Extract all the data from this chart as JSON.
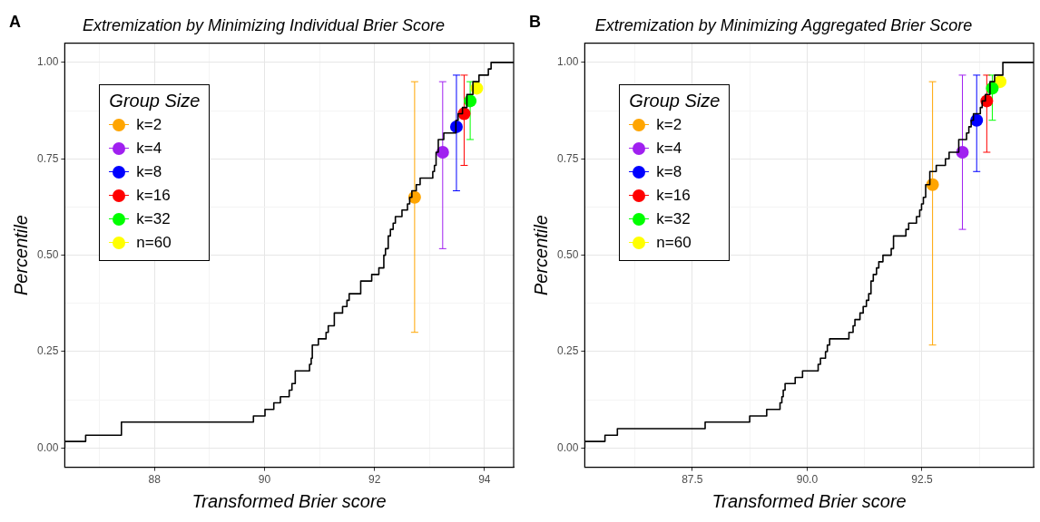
{
  "chart_data": [
    {
      "type": "scatter",
      "title": "Extremization by Minimizing Individual Brier Score",
      "xlabel": "Transformed Brier score",
      "ylabel": "Percentile",
      "annotations": [
        "A"
      ],
      "legend": "top left",
      "legend_title": "Group Size",
      "grid": true,
      "marker": "circle",
      "xlim": [
        86.37,
        94.53
      ],
      "xticks": [
        {
          "value": 87,
          "label": null
        },
        88,
        {
          "value": 89,
          "label": null
        },
        90,
        {
          "value": 91,
          "label": null
        },
        92,
        {
          "value": 93,
          "label": null
        },
        94
      ],
      "ylim": [
        -0.05,
        1.05
      ],
      "yticks": [
        {
          "value": 0,
          "label": "0.00"
        },
        {
          "value": 0.125,
          "label": null
        },
        {
          "value": 0.25,
          "label": "0.25"
        },
        {
          "value": 0.375,
          "label": null
        },
        {
          "value": 0.5,
          "label": "0.50"
        },
        {
          "value": 0.625,
          "label": null
        },
        {
          "value": 0.75,
          "label": "0.75"
        },
        {
          "value": 0.875,
          "label": null
        },
        {
          "value": 1,
          "label": "1.00"
        }
      ],
      "series": [
        {
          "type": "step",
          "color": "#000000",
          "marker": "none",
          "x": [
            86.37,
            86.75,
            87.4,
            89.8,
            90.01,
            90.17,
            90.29,
            90.45,
            90.5,
            90.56,
            90.82,
            90.85,
            90.87,
            90.98,
            91.12,
            91.16,
            91.27,
            91.42,
            91.5,
            91.54,
            91.75,
            91.95,
            92.08,
            92.17,
            92.2,
            92.25,
            92.29,
            92.34,
            92.38,
            92.5,
            92.6,
            92.64,
            92.68,
            92.76,
            92.83,
            93.06,
            93.09,
            93.12,
            93.16,
            93.26,
            93.48,
            93.52,
            93.6,
            93.68,
            93.79,
            93.9,
            94.07,
            94.12,
            94.16,
            94.53
          ],
          "values": [
            0,
            0.017,
            0.033,
            0.067,
            0.083,
            0.1,
            0.117,
            0.133,
            0.15,
            0.167,
            0.2,
            0.217,
            0.233,
            0.267,
            0.283,
            0.3,
            0.317,
            0.35,
            0.367,
            0.383,
            0.4,
            0.433,
            0.45,
            0.467,
            0.5,
            0.517,
            0.55,
            0.567,
            0.583,
            0.6,
            0.617,
            0.633,
            0.65,
            0.667,
            0.683,
            0.7,
            0.717,
            0.733,
            0.767,
            0.8,
            0.817,
            0.85,
            0.867,
            0.883,
            0.917,
            0.95,
            0.967,
            0.983,
            1,
            1
          ]
        },
        {
          "name": "k=2",
          "color": "#ffa500",
          "x": [
            92.73
          ],
          "values": [
            0.65
          ],
          "errors": [
            [
              0.3,
              0.95
            ]
          ]
        },
        {
          "name": "k=4",
          "color": "#a020f0",
          "x": [
            93.24
          ],
          "values": [
            0.767
          ],
          "errors": [
            [
              0.517,
              0.95
            ]
          ]
        },
        {
          "name": "k=8",
          "color": "#0000ff",
          "x": [
            93.49
          ],
          "values": [
            0.833
          ],
          "errors": [
            [
              0.667,
              0.967
            ]
          ]
        },
        {
          "name": "k=16",
          "color": "#ff0000",
          "x": [
            93.63
          ],
          "values": [
            0.867
          ],
          "errors": [
            [
              0.733,
              0.967
            ]
          ]
        },
        {
          "name": "k=32",
          "color": "#00ff00",
          "x": [
            93.74
          ],
          "values": [
            0.9
          ],
          "errors": [
            [
              0.8,
              0.95
            ]
          ]
        },
        {
          "name": "n=60",
          "color": "#ffff00",
          "x": [
            93.86
          ],
          "values": [
            0.933
          ]
        }
      ]
    },
    {
      "type": "scatter",
      "title": "Extremization by Minimizing Aggregated Brier Score",
      "xlabel": "Transformed Brier score",
      "ylabel": "Percentile",
      "annotations": [
        "B"
      ],
      "legend": "top left",
      "legend_title": "Group Size",
      "grid": true,
      "marker": "circle",
      "xlim": [
        85.16,
        94.93
      ],
      "xticks": [
        {
          "value": 86.25,
          "label": null
        },
        87.5,
        {
          "value": 88.75,
          "label": null
        },
        {
          "value": 90,
          "label": "90.0"
        },
        {
          "value": 91.25,
          "label": null
        },
        92.5,
        {
          "value": 93.75,
          "label": null
        }
      ],
      "ylim": [
        -0.05,
        1.05
      ],
      "yticks": [
        {
          "value": 0,
          "label": "0.00"
        },
        {
          "value": 0.125,
          "label": null
        },
        {
          "value": 0.25,
          "label": "0.25"
        },
        {
          "value": 0.375,
          "label": null
        },
        {
          "value": 0.5,
          "label": "0.50"
        },
        {
          "value": 0.625,
          "label": null
        },
        {
          "value": 0.75,
          "label": "0.75"
        },
        {
          "value": 0.875,
          "label": null
        },
        {
          "value": 1,
          "label": "1.00"
        }
      ],
      "series": [
        {
          "type": "step",
          "color": "#000000",
          "marker": "none",
          "x": [
            85.16,
            85.6,
            85.87,
            87.78,
            88.75,
            89.12,
            89.41,
            89.45,
            89.48,
            89.52,
            89.74,
            89.9,
            90.24,
            90.29,
            90.4,
            90.44,
            90.49,
            90.91,
            91.0,
            91.04,
            91.15,
            91.22,
            91.29,
            91.34,
            91.39,
            91.44,
            91.51,
            91.56,
            91.65,
            91.83,
            91.88,
            92.15,
            92.21,
            92.38,
            92.45,
            92.49,
            92.53,
            92.58,
            92.67,
            92.81,
            93.01,
            93.09,
            93.3,
            93.47,
            93.52,
            93.57,
            93.62,
            93.77,
            93.81,
            93.88,
            93.98,
            94.08,
            94.26,
            94.51,
            94.93
          ],
          "values": [
            0,
            0.017,
            0.033,
            0.05,
            0.067,
            0.083,
            0.1,
            0.117,
            0.133,
            0.15,
            0.167,
            0.183,
            0.2,
            0.217,
            0.233,
            0.25,
            0.267,
            0.283,
            0.3,
            0.317,
            0.333,
            0.35,
            0.367,
            0.383,
            0.4,
            0.433,
            0.45,
            0.467,
            0.483,
            0.5,
            0.517,
            0.55,
            0.567,
            0.583,
            0.6,
            0.617,
            0.633,
            0.65,
            0.683,
            0.717,
            0.733,
            0.75,
            0.767,
            0.8,
            0.817,
            0.833,
            0.85,
            0.867,
            0.883,
            0.9,
            0.917,
            0.95,
            0.967,
            1,
            1
          ]
        },
        {
          "name": "k=2",
          "color": "#ffa500",
          "x": [
            92.73
          ],
          "values": [
            0.683
          ],
          "errors": [
            [
              0.267,
              0.95
            ]
          ]
        },
        {
          "name": "k=4",
          "color": "#a020f0",
          "x": [
            93.38
          ],
          "values": [
            0.767
          ],
          "errors": [
            [
              0.567,
              0.967
            ]
          ]
        },
        {
          "name": "k=8",
          "color": "#0000ff",
          "x": [
            93.69
          ],
          "values": [
            0.85
          ],
          "errors": [
            [
              0.717,
              0.967
            ]
          ]
        },
        {
          "name": "k=16",
          "color": "#ff0000",
          "x": [
            93.91
          ],
          "values": [
            0.9
          ],
          "errors": [
            [
              0.767,
              0.967
            ]
          ]
        },
        {
          "name": "k=32",
          "color": "#00ff00",
          "x": [
            94.03
          ],
          "values": [
            0.933
          ],
          "errors": [
            [
              0.85,
              0.967
            ]
          ]
        },
        {
          "name": "n=60",
          "color": "#ffff00",
          "x": [
            94.2
          ],
          "values": [
            0.95
          ]
        }
      ]
    }
  ]
}
